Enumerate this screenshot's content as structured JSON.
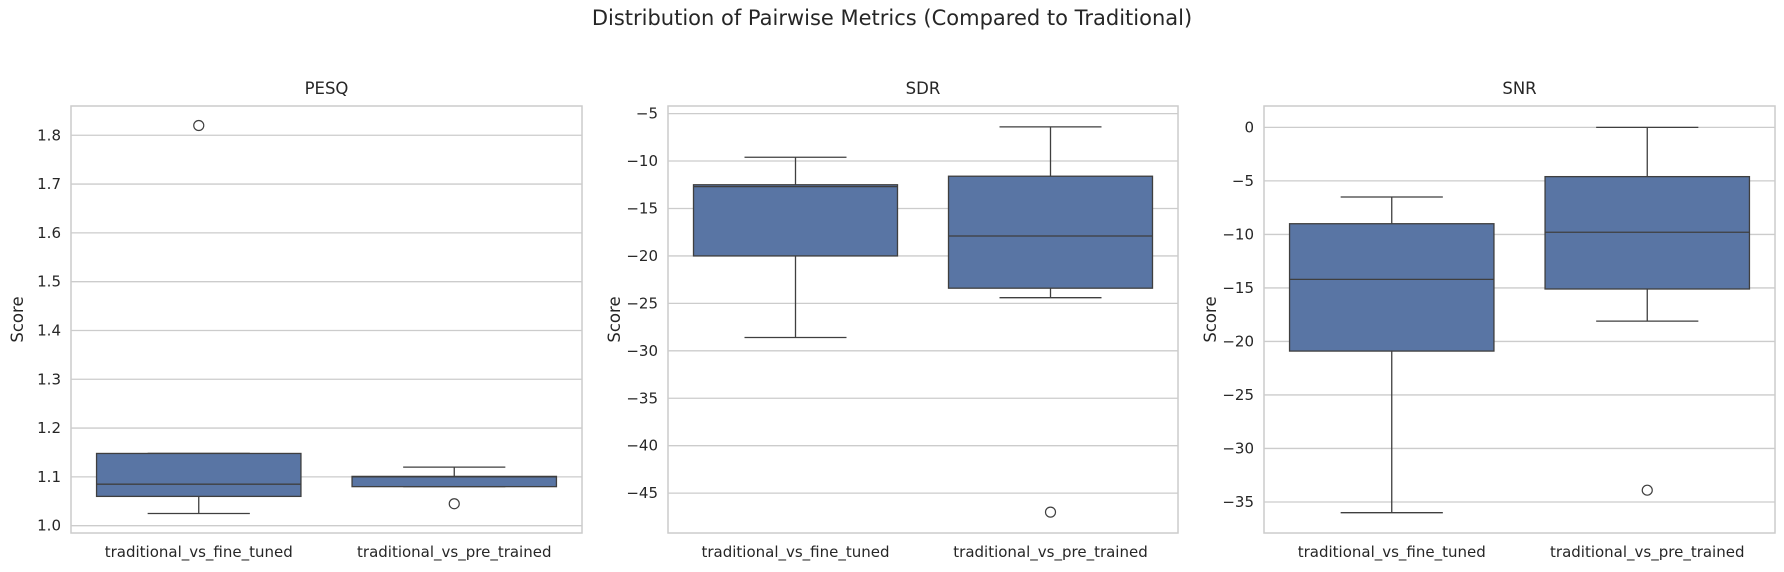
{
  "figure": {
    "title": "Distribution of Pairwise Metrics (Compared to Traditional)"
  },
  "colors": {
    "box_fill": "#5975a4",
    "box_edge": "#3f3f3f",
    "grid": "#cccccc",
    "spine": "#cccccc",
    "background": "#ffffff"
  },
  "chart_data": [
    {
      "type": "box",
      "title": "PESQ",
      "ylabel": "Score",
      "xlabel": "",
      "categories": [
        "traditional_vs_fine_tuned",
        "traditional_vs_pre_trained"
      ],
      "ylim": [
        0.985,
        1.86
      ],
      "yticks": [
        1.0,
        1.1,
        1.2,
        1.3,
        1.4,
        1.5,
        1.6,
        1.7,
        1.8
      ],
      "ytick_labels": [
        "1.0",
        "1.1",
        "1.2",
        "1.3",
        "1.4",
        "1.5",
        "1.6",
        "1.7",
        "1.8"
      ],
      "grid": true,
      "boxes": [
        {
          "category": "traditional_vs_fine_tuned",
          "whislo": 1.025,
          "q1": 1.06,
          "median": 1.085,
          "q3": 1.148,
          "whishi": 1.148,
          "fliers": [
            1.82
          ]
        },
        {
          "category": "traditional_vs_pre_trained",
          "whislo": 1.08,
          "q1": 1.08,
          "median": 1.1,
          "q3": 1.101,
          "whishi": 1.12,
          "fliers": [
            1.045
          ]
        }
      ]
    },
    {
      "type": "box",
      "title": "SDR",
      "ylabel": "Score",
      "xlabel": "",
      "categories": [
        "traditional_vs_fine_tuned",
        "traditional_vs_pre_trained"
      ],
      "ylim": [
        -49.2,
        -4.2
      ],
      "yticks": [
        -5,
        -10,
        -15,
        -20,
        -25,
        -30,
        -35,
        -40,
        -45
      ],
      "ytick_labels": [
        "−5",
        "−10",
        "−15",
        "−20",
        "−25",
        "−30",
        "−35",
        "−40",
        "−45"
      ],
      "grid": true,
      "boxes": [
        {
          "category": "traditional_vs_fine_tuned",
          "whislo": -28.6,
          "q1": -20.0,
          "median": -12.7,
          "q3": -12.5,
          "whishi": -9.6,
          "fliers": []
        },
        {
          "category": "traditional_vs_pre_trained",
          "whislo": -24.4,
          "q1": -23.4,
          "median": -17.9,
          "q3": -11.6,
          "whishi": -6.4,
          "fliers": [
            -47.0
          ]
        }
      ]
    },
    {
      "type": "box",
      "title": "SNR",
      "ylabel": "Score",
      "xlabel": "",
      "categories": [
        "traditional_vs_fine_tuned",
        "traditional_vs_pre_trained"
      ],
      "ylim": [
        -37.9,
        2.0
      ],
      "yticks": [
        0,
        -5,
        -10,
        -15,
        -20,
        -25,
        -30,
        -35
      ],
      "ytick_labels": [
        "0",
        "−5",
        "−10",
        "−15",
        "−20",
        "−25",
        "−30",
        "−35"
      ],
      "grid": true,
      "boxes": [
        {
          "category": "traditional_vs_fine_tuned",
          "whislo": -36.0,
          "q1": -20.9,
          "median": -14.2,
          "q3": -9.0,
          "whishi": -6.5,
          "fliers": []
        },
        {
          "category": "traditional_vs_pre_trained",
          "whislo": -18.1,
          "q1": -15.1,
          "median": -9.8,
          "q3": -4.6,
          "whishi": 0.0,
          "fliers": [
            -33.9
          ]
        }
      ]
    }
  ]
}
